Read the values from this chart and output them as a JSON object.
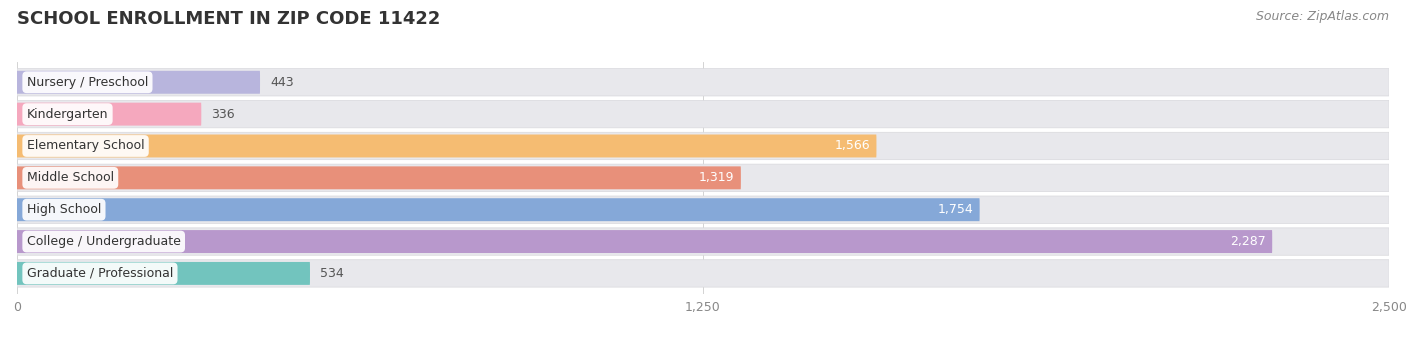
{
  "title": "SCHOOL ENROLLMENT IN ZIP CODE 11422",
  "source": "Source: ZipAtlas.com",
  "categories": [
    "Nursery / Preschool",
    "Kindergarten",
    "Elementary School",
    "Middle School",
    "High School",
    "College / Undergraduate",
    "Graduate / Professional"
  ],
  "values": [
    443,
    336,
    1566,
    1319,
    1754,
    2287,
    534
  ],
  "bar_colors": [
    "#b8b5dd",
    "#f5a8be",
    "#f5bc72",
    "#e8907a",
    "#85a8d8",
    "#b898cc",
    "#72c4be"
  ],
  "bar_bg_color": "#e8e8ec",
  "xlim": [
    0,
    2500
  ],
  "xticks": [
    0,
    1250,
    2500
  ],
  "title_fontsize": 13,
  "source_fontsize": 9,
  "label_fontsize": 9,
  "value_fontsize": 9,
  "background_color": "#ffffff",
  "value_threshold": 600
}
